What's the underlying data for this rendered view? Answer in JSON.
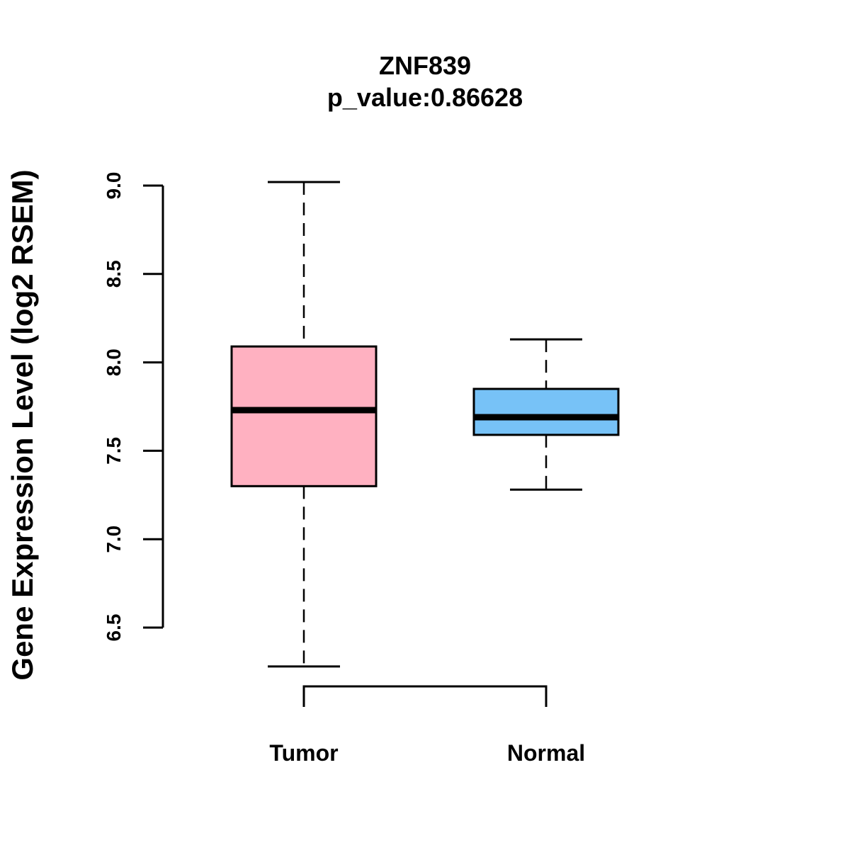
{
  "chart_data": {
    "type": "boxplot",
    "title": "ZNF839",
    "subtitle": "p_value:0.86628",
    "xlabel": "",
    "ylabel": "Gene Expression Level (log2 RSEM)",
    "ylim": [
      6.5,
      9.0
    ],
    "yticks": [
      6.5,
      7.0,
      7.5,
      8.0,
      8.5,
      9.0
    ],
    "ytick_labels": [
      "6.5",
      "7.0",
      "7.5",
      "8.0",
      "8.5",
      "9.0"
    ],
    "categories": [
      "Tumor",
      "Normal"
    ],
    "boxes": [
      {
        "name": "Tumor",
        "whisker_low": 6.28,
        "q1": 7.3,
        "median": 7.73,
        "q3": 8.09,
        "whisker_high": 9.02,
        "color": "#FFB1C1"
      },
      {
        "name": "Normal",
        "whisker_low": 7.28,
        "q1": 7.59,
        "median": 7.69,
        "q3": 7.85,
        "whisker_high": 8.13,
        "color": "#77C2F7"
      }
    ],
    "comparison_bracket": [
      "Tumor",
      "Normal"
    ]
  }
}
